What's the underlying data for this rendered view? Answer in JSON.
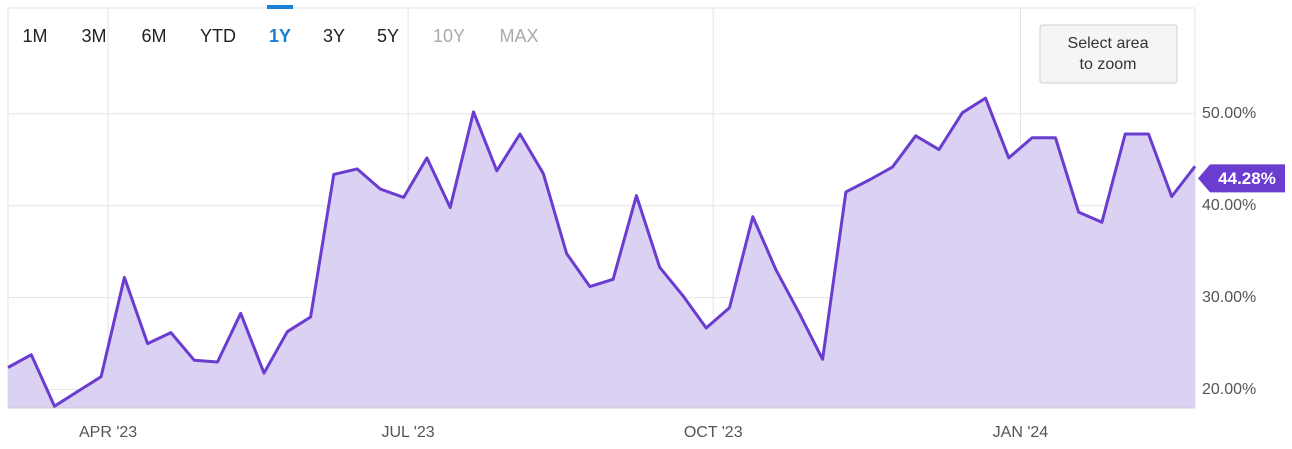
{
  "range_selector": {
    "buttons": [
      "1M",
      "3M",
      "6M",
      "YTD",
      "1Y",
      "3Y",
      "5Y",
      "10Y",
      "MAX"
    ],
    "selected": 4,
    "disabled": [
      7,
      8
    ]
  },
  "zoom_hint": [
    "Select area",
    "to zoom"
  ],
  "chart_data": {
    "type": "area",
    "x": [
      0,
      1,
      2,
      3,
      4,
      5,
      6,
      7,
      8,
      9,
      10,
      11,
      12,
      13,
      14,
      15,
      16,
      17,
      18,
      19,
      20,
      21,
      22,
      23,
      24,
      25,
      26,
      27,
      28,
      29,
      30,
      31,
      32,
      33,
      34,
      35,
      36,
      37,
      38,
      39,
      40,
      41,
      42,
      43,
      44,
      45,
      46,
      47,
      48,
      49,
      50,
      51
    ],
    "values": [
      22.4,
      23.8,
      18.2,
      19.8,
      21.4,
      32.2,
      25.0,
      26.2,
      23.2,
      23.0,
      28.3,
      21.8,
      26.3,
      27.9,
      43.4,
      44.0,
      41.8,
      40.9,
      45.2,
      39.8,
      50.2,
      43.8,
      47.8,
      43.5,
      34.8,
      31.2,
      32.0,
      41.1,
      33.3,
      30.2,
      26.7,
      28.9,
      38.8,
      33.0,
      28.3,
      23.3,
      41.5,
      42.8,
      44.2,
      47.6,
      46.1,
      50.1,
      51.7,
      45.2,
      47.4,
      47.4,
      39.3,
      38.2,
      47.8,
      47.8,
      41.0,
      44.28
    ],
    "color": "#6a3ccf",
    "fill_color": "#d9cff2",
    "current": {
      "value": 44.28,
      "label": "44.28%"
    },
    "xlim": [
      0,
      51
    ],
    "xticks": [
      {
        "value": 4.3,
        "label": "APR '23"
      },
      {
        "value": 17.19,
        "label": "JUL '23"
      },
      {
        "value": 30.3,
        "label": "OCT '23"
      },
      {
        "value": 43.5,
        "label": "JAN '24"
      }
    ],
    "ylim": [
      18,
      61.5
    ],
    "yticks": [
      {
        "value": 20,
        "label": "20.00%"
      },
      {
        "value": 30,
        "label": "30.00%"
      },
      {
        "value": 40,
        "label": "40.00%"
      },
      {
        "value": 50,
        "label": "50.00%"
      }
    ],
    "grid": true
  }
}
